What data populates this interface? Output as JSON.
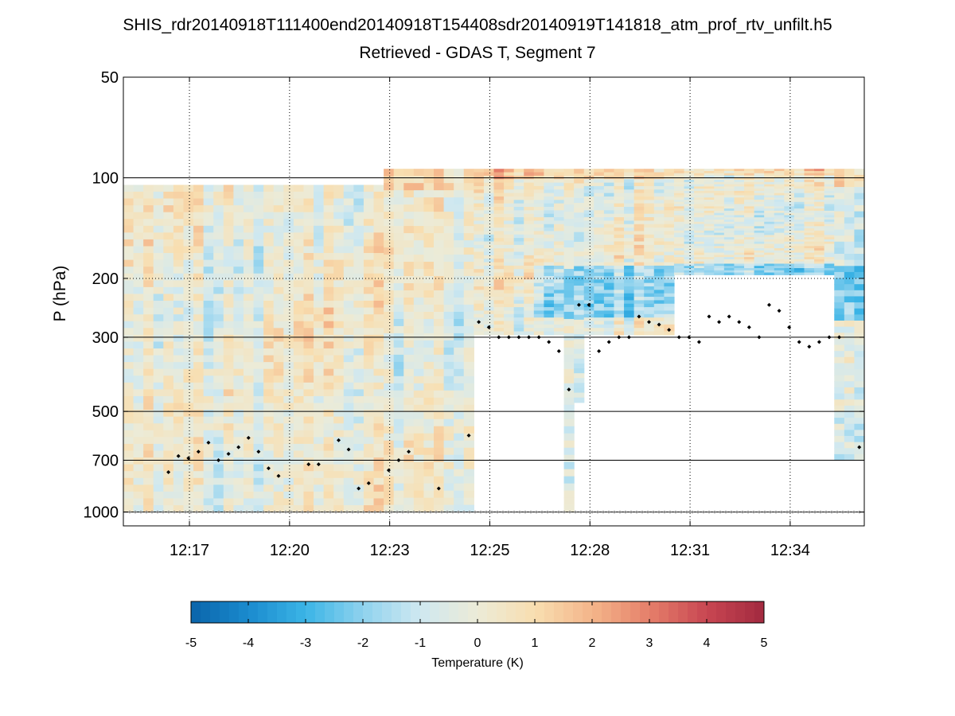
{
  "chart_data": {
    "type": "heatmap",
    "title": "SHIS_rdr20140918T111400end20140918T154408sdr20140919T141818_atm_prof_rtv_unfilt.h5",
    "subtitle": "Retrieved - GDAS T, Segment 7",
    "xlabel": "",
    "ylabel": "P (hPa)",
    "yscale": "log",
    "yreversed": true,
    "ylim": [
      50,
      1100
    ],
    "xlim": [
      12.25,
      12.62
    ],
    "x_ticks": [
      {
        "value": 12.283,
        "label": "12:17"
      },
      {
        "value": 12.333,
        "label": "12:20"
      },
      {
        "value": 12.383,
        "label": "12:23"
      },
      {
        "value": 12.433,
        "label": "12:25"
      },
      {
        "value": 12.483,
        "label": "12:28"
      },
      {
        "value": 12.533,
        "label": "12:31"
      },
      {
        "value": 12.583,
        "label": "12:34"
      }
    ],
    "y_ticks": [
      50,
      100,
      200,
      300,
      500,
      700,
      1000
    ],
    "y_gridlines_solid": [
      100,
      300,
      500,
      700,
      1000
    ],
    "y_gridlines_dotted": [
      200
    ],
    "colorbar": {
      "label": "Temperature (K)",
      "ticks": [
        -5,
        -4,
        -3,
        -2,
        -1,
        0,
        1,
        2,
        3,
        4,
        5
      ],
      "range": [
        -5,
        5
      ]
    },
    "colormap": [
      "#0a64aa",
      "#1a8bce",
      "#3bb4e6",
      "#8fd2ee",
      "#cfe8f0",
      "#ecebd7",
      "#f8deb0",
      "#f4b58a",
      "#e57f6a",
      "#c84652",
      "#a22a3f"
    ],
    "columns": 74,
    "col_top_pressure": [
      105,
      105,
      105,
      105,
      105,
      105,
      105,
      105,
      105,
      105,
      105,
      105,
      105,
      105,
      105,
      105,
      105,
      105,
      105,
      105,
      105,
      105,
      105,
      105,
      105,
      105,
      94,
      94,
      94,
      94,
      94,
      94,
      94,
      94,
      94,
      94,
      94,
      94,
      94,
      94,
      94,
      94,
      94,
      94,
      94,
      94,
      94,
      94,
      94,
      94,
      94,
      94,
      94,
      94,
      94,
      94,
      94,
      94,
      94,
      94,
      94,
      94,
      94,
      94,
      94,
      94,
      94,
      94,
      94,
      94,
      94,
      94,
      94,
      94
    ],
    "col_bottom_pressure": [
      1000,
      1000,
      1000,
      1000,
      1000,
      1000,
      1000,
      1000,
      1000,
      1000,
      1000,
      1000,
      1000,
      1000,
      1000,
      1000,
      1000,
      1000,
      1000,
      1000,
      1000,
      1000,
      1000,
      1000,
      1000,
      1000,
      1000,
      1000,
      1000,
      1000,
      1000,
      1000,
      1000,
      1000,
      1000,
      295,
      295,
      295,
      295,
      295,
      295,
      295,
      295,
      295,
      1000,
      470,
      295,
      295,
      295,
      295,
      295,
      295,
      295,
      295,
      295,
      195,
      195,
      195,
      195,
      195,
      195,
      195,
      195,
      195,
      195,
      195,
      195,
      195,
      195,
      195,
      195,
      700,
      700,
      700
    ],
    "cloud_top_pressure": [
      null,
      null,
      null,
      null,
      760,
      680,
      690,
      660,
      620,
      700,
      670,
      640,
      600,
      660,
      740,
      780,
      null,
      null,
      720,
      720,
      null,
      610,
      650,
      850,
      820,
      null,
      750,
      700,
      660,
      null,
      null,
      850,
      null,
      null,
      590,
      270,
      280,
      300,
      300,
      300,
      300,
      300,
      310,
      330,
      430,
      240,
      240,
      330,
      310,
      300,
      300,
      260,
      270,
      275,
      285,
      300,
      300,
      310,
      260,
      270,
      260,
      270,
      280,
      300,
      240,
      250,
      280,
      310,
      320,
      310,
      300,
      300,
      null,
      640
    ],
    "surface_marker_pressure": 1000
  }
}
